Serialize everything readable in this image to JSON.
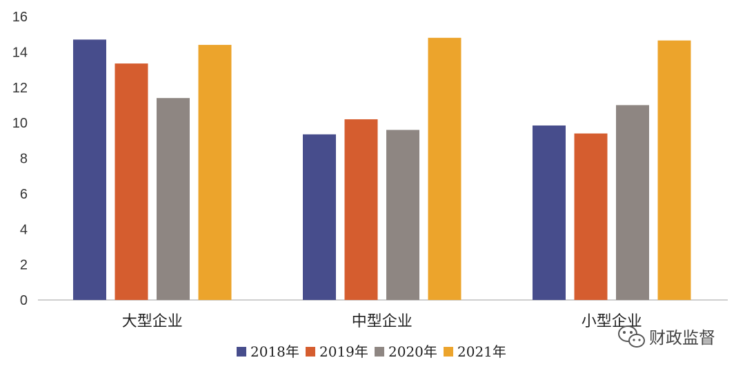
{
  "chart_data": {
    "type": "bar",
    "categories": [
      "大型企业",
      "中型企业",
      "小型企业"
    ],
    "series": [
      {
        "name": "2018年",
        "color": "#474D8C",
        "values": [
          14.7,
          9.35,
          9.85
        ]
      },
      {
        "name": "2019年",
        "color": "#D55D2F",
        "values": [
          13.35,
          10.2,
          9.4
        ]
      },
      {
        "name": "2020年",
        "color": "#8E8682",
        "values": [
          11.4,
          9.6,
          11.0
        ]
      },
      {
        "name": "2021年",
        "color": "#ECA42C",
        "values": [
          14.4,
          14.8,
          14.65
        ]
      }
    ],
    "ylim": [
      0,
      16
    ],
    "yticks": [
      "0",
      "2",
      "4",
      "6",
      "8",
      "10",
      "12",
      "14",
      "16"
    ],
    "grid": false,
    "legend_position": "bottom",
    "xlabel": "",
    "ylabel": ""
  },
  "watermark": {
    "text": "财政监督",
    "icon": "wechat-icon"
  }
}
